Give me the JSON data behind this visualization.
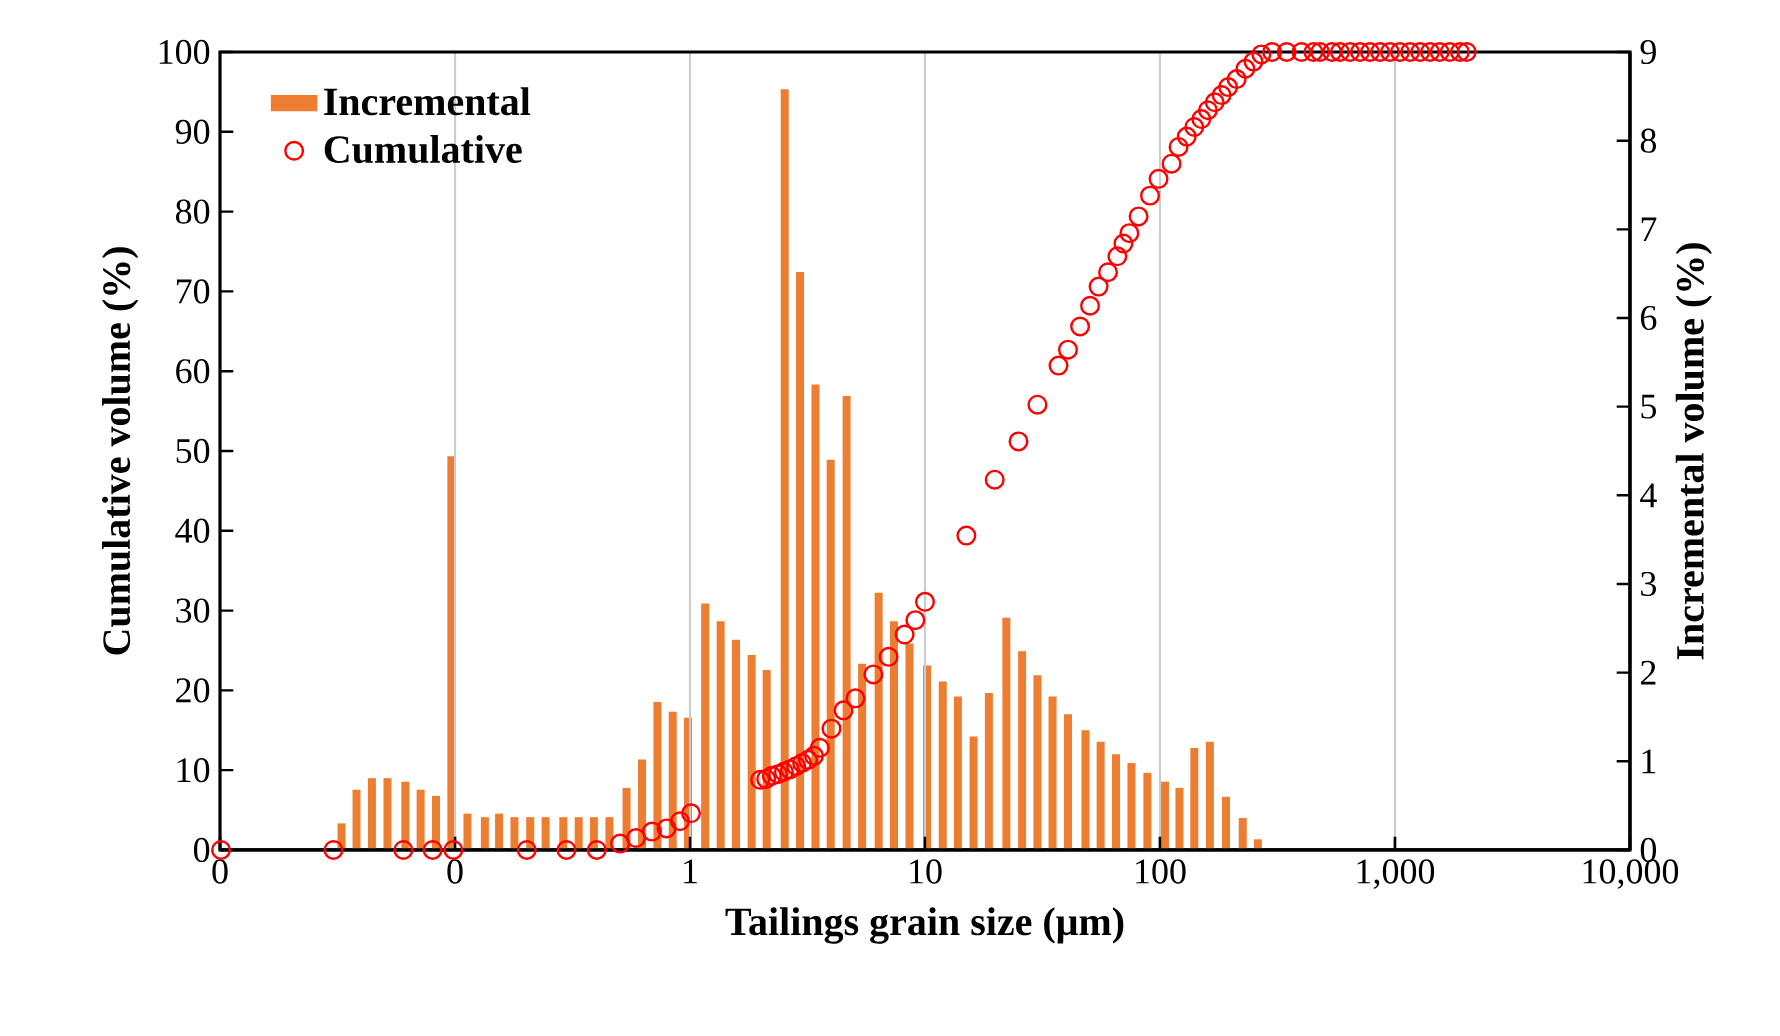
{
  "chart_data": {
    "type": "bar",
    "xlabel": "Tailings grain size (μm)",
    "ylabel": "Cumulative volume (%)",
    "y2label": "Incremental volume (%)",
    "log": "x",
    "grid": "x",
    "legend": "top left",
    "marker": "circle",
    "xlim": [
      0.01,
      10000
    ],
    "xticks": [
      {
        "value": 0.01,
        "label": "0"
      },
      {
        "value": 0.1,
        "label": "0"
      },
      1,
      10,
      100,
      {
        "value": 1000,
        "label": "1,000"
      },
      {
        "value": 10000,
        "label": "10,000"
      }
    ],
    "ylim": [
      0,
      100
    ],
    "yticks": [
      0,
      10,
      20,
      30,
      40,
      50,
      60,
      70,
      80,
      90,
      100
    ],
    "y2lim": [
      0,
      9
    ],
    "y2ticks": [
      0,
      1,
      2,
      3,
      4,
      5,
      6,
      7,
      8,
      9
    ],
    "series": [
      {
        "name": "Incremental",
        "axis": "y2",
        "color": "#ed7d31",
        "x": [
          0.0329,
          0.0381,
          0.0443,
          0.0516,
          0.0615,
          0.0714,
          0.083,
          0.0965,
          0.113,
          0.134,
          0.154,
          0.179,
          0.209,
          0.243,
          0.289,
          0.336,
          0.39,
          0.454,
          0.537,
          0.625,
          0.727,
          0.844,
          0.981,
          1.16,
          1.35,
          1.57,
          1.83,
          2.12,
          2.53,
          2.94,
          3.42,
          3.97,
          4.64,
          5.4,
          6.35,
          7.38,
          8.59,
          10.2,
          11.9,
          13.8,
          16.1,
          18.7,
          22.2,
          25.9,
          30.1,
          34.9,
          40.6,
          48.2,
          55.9,
          65.0,
          75.6,
          88.4,
          105,
          121,
          140,
          163,
          191,
          225,
          261
        ],
        "values": [
          0.3,
          0.68,
          0.81,
          0.81,
          0.77,
          0.68,
          0.61,
          4.44,
          0.41,
          0.37,
          0.41,
          0.37,
          0.37,
          0.37,
          0.37,
          0.37,
          0.37,
          0.37,
          0.7,
          1.02,
          1.67,
          1.56,
          1.49,
          2.78,
          2.58,
          2.37,
          2.2,
          2.03,
          8.58,
          6.52,
          5.25,
          4.4,
          5.12,
          2.1,
          2.9,
          2.58,
          2.33,
          2.08,
          1.9,
          1.73,
          1.28,
          1.77,
          2.62,
          2.24,
          1.97,
          1.73,
          1.53,
          1.35,
          1.22,
          1.08,
          0.98,
          0.87,
          0.77,
          0.7,
          1.15,
          1.22,
          0.6,
          0.36,
          0.12
        ]
      },
      {
        "name": "Cumulative",
        "type": "scatter",
        "axis": "y",
        "color": "#ff0000",
        "x": [
          0.0101,
          0.0304,
          0.0603,
          0.0803,
          0.0984,
          0.202,
          0.298,
          0.401,
          0.504,
          0.589,
          0.689,
          0.795,
          0.907,
          1.01,
          1.99,
          2.11,
          2.23,
          2.37,
          2.51,
          2.66,
          2.83,
          3.0,
          3.18,
          3.37,
          3.57,
          4.0,
          4.5,
          5.06,
          6.03,
          7.0,
          8.19,
          9.1,
          10.0,
          15.0,
          19.8,
          25.0,
          30.1,
          37.0,
          40.6,
          45.7,
          50.4,
          54.8,
          60.1,
          65.9,
          69.9,
          74.1,
          81.1,
          90.7,
          98.6,
          112,
          120,
          130,
          140,
          150,
          160,
          171,
          183,
          195,
          212,
          231,
          250,
          270,
          300,
          346,
          400,
          450,
          480,
          540,
          583,
          644,
          710,
          783,
          864,
          952,
          1050,
          1160,
          1280,
          1410,
          1550,
          1710,
          1890,
          2020
        ],
        "values": [
          0,
          0,
          0,
          0,
          0,
          0,
          0,
          0,
          0.8,
          1.5,
          2.3,
          2.7,
          3.6,
          4.6,
          8.8,
          8.9,
          9.3,
          9.5,
          9.8,
          10.1,
          10.5,
          10.9,
          11.3,
          11.8,
          12.8,
          15.2,
          17.5,
          19.0,
          22.0,
          24.2,
          27.0,
          28.8,
          31.1,
          39.4,
          46.4,
          51.2,
          55.8,
          60.7,
          62.7,
          65.6,
          68.2,
          70.6,
          72.4,
          74.4,
          76.0,
          77.3,
          79.4,
          82.0,
          84.1,
          86.0,
          88.1,
          89.4,
          90.6,
          91.6,
          92.7,
          93.7,
          94.6,
          95.6,
          96.6,
          97.9,
          98.8,
          99.7,
          100,
          100,
          100,
          100,
          100,
          100,
          100,
          100,
          100,
          100,
          100,
          100,
          100,
          100,
          100,
          100,
          100,
          100,
          100,
          100
        ]
      }
    ]
  }
}
